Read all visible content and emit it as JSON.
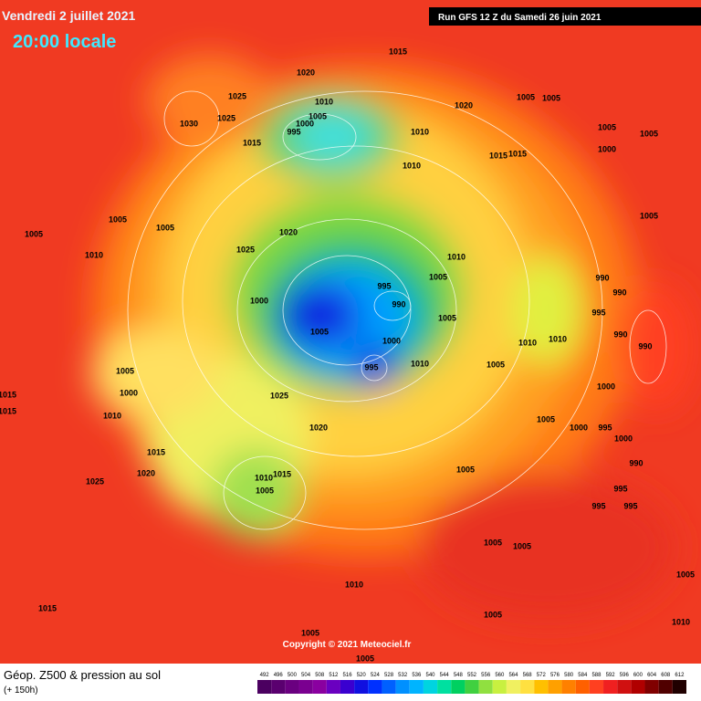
{
  "header": {
    "date": "Vendredi 2 juillet 2021",
    "time": "20:00 locale",
    "run": "Run GFS 12 Z du Samedi 26 juin 2021"
  },
  "copyright": "Copyright © 2021 Meteociel.fr",
  "footer": {
    "title": "Géop. Z500 & pression au sol",
    "lead": "(+ 150h)"
  },
  "isobars": {
    "labels": [
      1015,
      1020,
      1025,
      1030,
      1025,
      1010,
      1005,
      1000,
      995,
      1015,
      1010,
      1010,
      1020,
      1005,
      1005,
      1005,
      1005,
      1000,
      1015,
      1015,
      1005,
      1005,
      1005,
      1010,
      1020,
      1025,
      1010,
      1005,
      995,
      990,
      1000,
      1005,
      1000,
      1005,
      995,
      1010,
      1005,
      1010,
      1010,
      990,
      990,
      995,
      990,
      990,
      1005,
      1005,
      1000,
      1010,
      1015,
      1015,
      1025,
      1020,
      1000,
      1005,
      1000,
      995,
      1000,
      990,
      995,
      995,
      995,
      1015,
      1020,
      1025,
      1010,
      1015,
      1005,
      1005,
      1005,
      1005,
      1010,
      1005,
      1005,
      1010,
      1015,
      1005,
      1005
    ]
  },
  "scale": {
    "values": [
      492,
      496,
      500,
      504,
      508,
      512,
      516,
      520,
      524,
      528,
      532,
      536,
      540,
      544,
      548,
      552,
      556,
      560,
      564,
      568,
      572,
      576,
      580,
      584,
      588,
      592,
      596,
      600,
      604,
      608,
      612
    ],
    "colors": [
      "#4b0060",
      "#5a006f",
      "#6a0080",
      "#7a0090",
      "#8a00a0",
      "#6a00c0",
      "#3a00d0",
      "#1010e0",
      "#0030ff",
      "#0060ff",
      "#0090ff",
      "#00b4ff",
      "#00d4e0",
      "#00e0a0",
      "#00d060",
      "#40d040",
      "#90e040",
      "#c8f040",
      "#f0f060",
      "#ffe040",
      "#ffc000",
      "#ffa000",
      "#ff8000",
      "#ff6000",
      "#ff4020",
      "#f02020",
      "#d01010",
      "#b00000",
      "#800000",
      "#500000",
      "#200000"
    ]
  }
}
